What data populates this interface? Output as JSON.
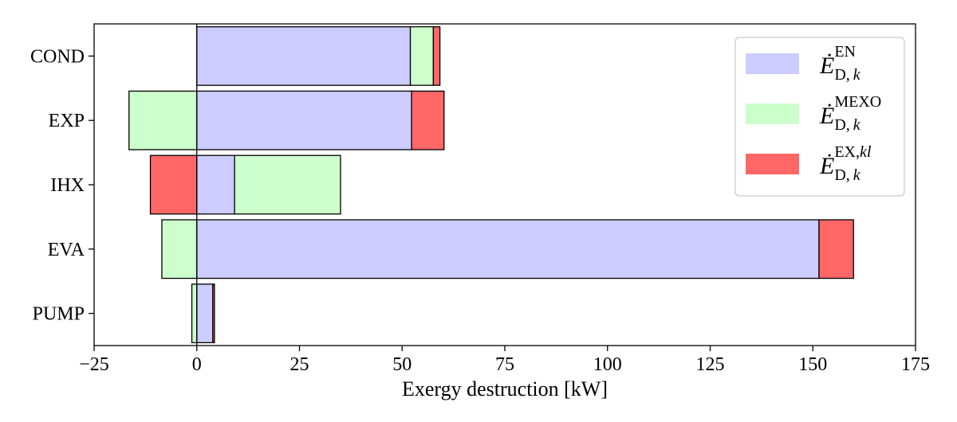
{
  "chart_data": {
    "type": "bar",
    "orientation": "horizontal",
    "stacked": "diverging",
    "categories": [
      "COND",
      "EXP",
      "IHX",
      "EVA",
      "PUMP"
    ],
    "series": [
      {
        "name": "EN",
        "legend": {
          "base": "Ė",
          "sup": "EN",
          "sub": "D,",
          "subvar": "k",
          "supvar": ""
        },
        "color": "#ccccff",
        "values": [
          52.0,
          52.3,
          9.2,
          151.5,
          3.9
        ]
      },
      {
        "name": "MEXO",
        "legend": {
          "base": "Ė",
          "sup": "MEXO",
          "sub": "D,",
          "subvar": "k",
          "supvar": ""
        },
        "color": "#ccffcc",
        "values": [
          5.6,
          -16.5,
          25.8,
          -8.5,
          -1.2
        ]
      },
      {
        "name": "EX,kl",
        "legend": {
          "base": "Ė",
          "sup": "EX,",
          "sub": "D,",
          "subvar": "k",
          "supvar": "kl"
        },
        "color": "#ff6666",
        "values": [
          1.6,
          7.9,
          -11.3,
          8.4,
          0.4
        ]
      }
    ],
    "xlim": [
      -25,
      175
    ],
    "xticks": [
      -25,
      0,
      25,
      50,
      75,
      100,
      125,
      150,
      175
    ],
    "xtick_labels": [
      "−25",
      "0",
      "25",
      "50",
      "75",
      "100",
      "125",
      "150",
      "175"
    ],
    "xlabel": "Exergy destruction [kW]",
    "ylabel": "",
    "title": "",
    "zero_line": true,
    "grid": false,
    "legend_position": "top-right"
  }
}
